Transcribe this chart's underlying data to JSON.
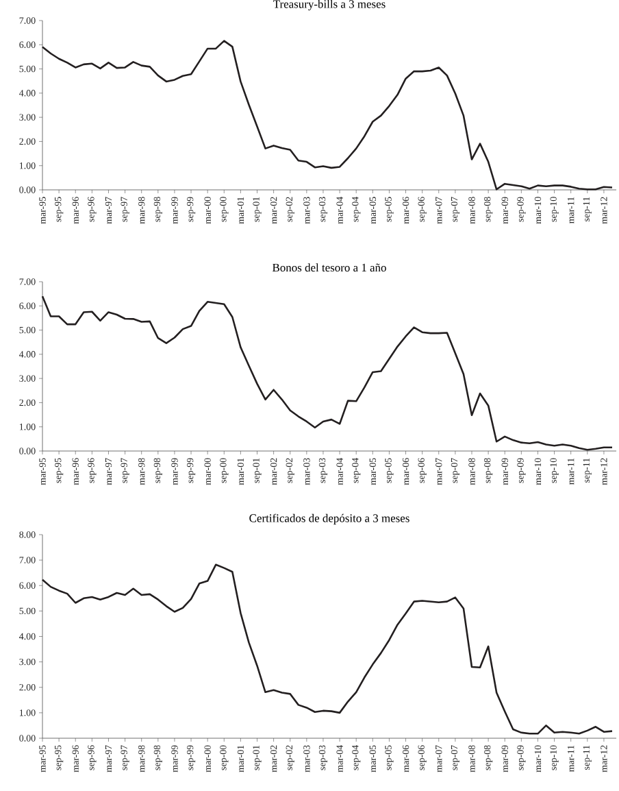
{
  "chart_data": [
    {
      "type": "line",
      "title": "Treasury-bills a 3 meses",
      "categories": [
        "mar-95",
        null,
        "sep-95",
        null,
        "mar-96",
        null,
        "sep-96",
        null,
        "mar-97",
        null,
        "sep-97",
        null,
        "mar-98",
        null,
        "sep-98",
        null,
        "mar-99",
        null,
        "sep-99",
        null,
        "mar-00",
        null,
        "sep-00",
        null,
        "mar-01",
        null,
        "sep-01",
        null,
        "mar-02",
        null,
        "sep-02",
        null,
        "mar-03",
        null,
        "sep-03",
        null,
        "mar-04",
        null,
        "sep-04",
        null,
        "mar-05",
        null,
        "sep-05",
        null,
        "mar-06",
        null,
        "sep-06",
        null,
        "mar-07",
        null,
        "sep-07",
        null,
        "mar-08",
        null,
        "sep-08",
        null,
        "mar-09",
        null,
        "sep-09",
        null,
        "mar-10",
        null,
        "sep-10",
        null,
        "mar-11",
        null,
        "sep-11",
        null,
        "mar-12",
        null
      ],
      "values": [
        5.91,
        5.64,
        5.42,
        5.26,
        5.06,
        5.19,
        5.22,
        5.02,
        5.26,
        5.04,
        5.06,
        5.29,
        5.14,
        5.09,
        4.73,
        4.48,
        4.55,
        4.71,
        4.78,
        5.31,
        5.84,
        5.84,
        6.16,
        5.92,
        4.48,
        3.52,
        2.62,
        1.71,
        1.83,
        1.73,
        1.66,
        1.21,
        1.16,
        0.93,
        0.98,
        0.91,
        0.95,
        1.31,
        1.71,
        2.22,
        2.82,
        3.07,
        3.47,
        3.93,
        4.6,
        4.9,
        4.9,
        4.93,
        5.06,
        4.73,
        3.98,
        3.07,
        1.26,
        1.91,
        1.16,
        0.02,
        0.25,
        0.2,
        0.15,
        0.05,
        0.18,
        0.15,
        0.18,
        0.18,
        0.13,
        0.05,
        0.02,
        0.02,
        0.12,
        0.1
      ],
      "color": "#231f20",
      "ylim": [
        0,
        7
      ],
      "yticks": [
        {
          "value": 0,
          "label": "0.00"
        },
        {
          "value": 1,
          "label": "1.00"
        },
        {
          "value": 2,
          "label": "2.00"
        },
        {
          "value": 3,
          "label": "3.00"
        },
        {
          "value": 4,
          "label": "4.00"
        },
        {
          "value": 5,
          "label": "5.00"
        },
        {
          "value": 6,
          "label": "6.00"
        },
        {
          "value": 7,
          "label": "7.00"
        }
      ]
    },
    {
      "type": "line",
      "title": "Bonos del tesoro a 1 año",
      "categories": [
        "mar-95",
        null,
        "sep-95",
        null,
        "mar-96",
        null,
        "sep-96",
        null,
        "mar-97",
        null,
        "sep-97",
        null,
        "mar-98",
        null,
        "sep-98",
        null,
        "mar-99",
        null,
        "sep-99",
        null,
        "mar-00",
        null,
        "sep-00",
        null,
        "mar-01",
        null,
        "sep-01",
        null,
        "mar-02",
        null,
        "sep-02",
        null,
        "mar-03",
        null,
        "sep-03",
        null,
        "mar-04",
        null,
        "sep-04",
        null,
        "mar-05",
        null,
        "sep-05",
        null,
        "mar-06",
        null,
        "sep-06",
        null,
        "mar-07",
        null,
        "sep-07",
        null,
        "mar-08",
        null,
        "sep-08",
        null,
        "mar-09",
        null,
        "sep-09",
        null,
        "mar-10",
        null,
        "sep-10",
        null,
        "mar-11",
        null,
        "sep-11",
        null,
        "mar-12",
        null
      ],
      "values": [
        6.4,
        5.57,
        5.57,
        5.24,
        5.24,
        5.74,
        5.76,
        5.39,
        5.74,
        5.64,
        5.47,
        5.46,
        5.34,
        5.36,
        4.67,
        4.46,
        4.69,
        5.04,
        5.17,
        5.79,
        6.17,
        6.12,
        6.07,
        5.54,
        4.29,
        3.53,
        2.78,
        2.13,
        2.53,
        2.13,
        1.68,
        1.43,
        1.22,
        0.97,
        1.22,
        1.3,
        1.12,
        2.08,
        2.06,
        2.63,
        3.26,
        3.3,
        3.81,
        4.32,
        4.74,
        5.11,
        4.91,
        4.87,
        4.87,
        4.89,
        4.04,
        3.18,
        1.48,
        2.38,
        1.88,
        0.39,
        0.6,
        0.45,
        0.35,
        0.32,
        0.37,
        0.27,
        0.22,
        0.27,
        0.22,
        0.12,
        0.05,
        0.09,
        0.15,
        0.15
      ],
      "color": "#231f20",
      "ylim": [
        0,
        7
      ],
      "yticks": [
        {
          "value": 0,
          "label": "0.00"
        },
        {
          "value": 1,
          "label": "1.00"
        },
        {
          "value": 2,
          "label": "2.00"
        },
        {
          "value": 3,
          "label": "3.00"
        },
        {
          "value": 4,
          "label": "4.00"
        },
        {
          "value": 5,
          "label": "5.00"
        },
        {
          "value": 6,
          "label": "6.00"
        },
        {
          "value": 7,
          "label": "7.00"
        }
      ]
    },
    {
      "type": "line",
      "title": "Certificados de depósito a 3 meses",
      "categories": [
        "mar-95",
        null,
        "sep-95",
        null,
        "mar-96",
        null,
        "sep-96",
        null,
        "mar-97",
        null,
        "sep-97",
        null,
        "mar-98",
        null,
        "sep-98",
        null,
        "mar-99",
        null,
        "sep-99",
        null,
        "mar-00",
        null,
        "sep-00",
        null,
        "mar-01",
        null,
        "sep-01",
        null,
        "mar-02",
        null,
        "sep-02",
        null,
        "mar-03",
        null,
        "sep-03",
        null,
        "mar-04",
        null,
        "sep-04",
        null,
        "mar-05",
        null,
        "sep-05",
        null,
        "mar-06",
        null,
        "sep-06",
        null,
        "mar-07",
        null,
        "sep-07",
        null,
        "mar-08",
        null,
        "sep-08",
        null,
        "mar-09",
        null,
        "sep-09",
        null,
        "mar-10",
        null,
        "sep-10",
        null,
        "mar-11",
        null,
        "sep-11",
        null,
        "mar-12",
        null
      ],
      "values": [
        6.23,
        5.95,
        5.8,
        5.68,
        5.32,
        5.5,
        5.55,
        5.45,
        5.55,
        5.71,
        5.63,
        5.88,
        5.63,
        5.66,
        5.45,
        5.19,
        4.97,
        5.12,
        5.47,
        6.08,
        6.18,
        6.82,
        6.69,
        6.54,
        4.92,
        3.76,
        2.85,
        1.81,
        1.89,
        1.79,
        1.74,
        1.31,
        1.2,
        1.03,
        1.08,
        1.06,
        1.0,
        1.44,
        1.81,
        2.39,
        2.9,
        3.35,
        3.86,
        4.46,
        4.9,
        5.37,
        5.4,
        5.37,
        5.34,
        5.37,
        5.53,
        5.1,
        2.8,
        2.78,
        3.61,
        1.79,
        1.05,
        0.35,
        0.22,
        0.18,
        0.18,
        0.5,
        0.22,
        0.25,
        0.22,
        0.18,
        0.3,
        0.45,
        0.25,
        0.28
      ],
      "color": "#231f20",
      "ylim": [
        0,
        8
      ],
      "yticks": [
        {
          "value": 0,
          "label": "0.00"
        },
        {
          "value": 1,
          "label": "1.00"
        },
        {
          "value": 2,
          "label": "2.00"
        },
        {
          "value": 3,
          "label": "3.00"
        },
        {
          "value": 4,
          "label": "4.00"
        },
        {
          "value": 5,
          "label": "5.00"
        },
        {
          "value": 6,
          "label": "6.00"
        },
        {
          "value": 7,
          "label": "7.00"
        },
        {
          "value": 8,
          "label": "8.00"
        }
      ]
    }
  ]
}
